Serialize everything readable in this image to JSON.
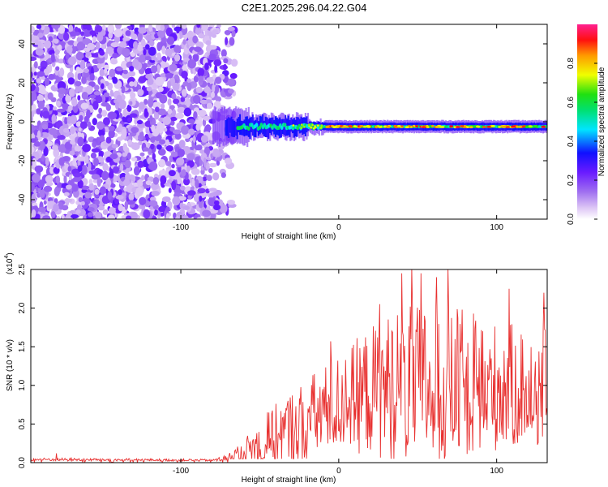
{
  "title": "C2E1.2025.296.04.22.G04",
  "chart_data": [
    {
      "type": "heatmap",
      "title": "C2E1.2025.296.04.22.G04",
      "xlabel": "Height of straight line (km)",
      "ylabel": "Frequency (Hz)",
      "xlim": [
        -195,
        132
      ],
      "ylim": [
        -50,
        50
      ],
      "x_ticks": [
        -100,
        0,
        100
      ],
      "y_ticks": [
        -40,
        -20,
        0,
        20,
        40
      ],
      "colorbar": {
        "label": "Normalized spectral amplitude",
        "range": [
          0,
          1
        ],
        "ticks": [
          "0.0",
          "0.2",
          "0.4",
          "0.6",
          "0.8"
        ],
        "tick_values": [
          0.0,
          0.2,
          0.4,
          0.6,
          0.8
        ]
      },
      "description_data": {
        "noise_region_x": [
          -195,
          -72
        ],
        "signal_band_center_hz": -2.5,
        "signal_onset_x": -72,
        "peak_region_x": [
          -10,
          132
        ]
      }
    },
    {
      "type": "line",
      "xlabel": "Height of straight line (km)",
      "ylabel": "SNR (10 * v/v)",
      "y_scale_label": "(x10",
      "y_scale_exp": "4",
      "y_scale_close": ")",
      "xlim": [
        -195,
        132
      ],
      "ylim": [
        0,
        2.5
      ],
      "x_ticks": [
        -100,
        0,
        100
      ],
      "y_ticks": [
        "0.0",
        "0.5",
        "1.0",
        "1.5",
        "2.0",
        "2.5"
      ],
      "y_tick_values": [
        0.0,
        0.5,
        1.0,
        1.5,
        2.0,
        2.5
      ],
      "series": [
        {
          "name": "SNR",
          "color": "#e8302f",
          "envelope": [
            {
              "x": -195,
              "base": 0.04,
              "amp": 0.03
            },
            {
              "x": -80,
              "base": 0.03,
              "amp": 0.02
            },
            {
              "x": -70,
              "base": 0.05,
              "amp": 0.08
            },
            {
              "x": -55,
              "base": 0.15,
              "amp": 0.35
            },
            {
              "x": -40,
              "base": 0.3,
              "amp": 0.6
            },
            {
              "x": -20,
              "base": 0.5,
              "amp": 0.8
            },
            {
              "x": 0,
              "base": 0.7,
              "amp": 0.9
            },
            {
              "x": 20,
              "base": 0.85,
              "amp": 1.2
            },
            {
              "x": 40,
              "base": 0.9,
              "amp": 1.5
            },
            {
              "x": 70,
              "base": 0.9,
              "amp": 1.5
            },
            {
              "x": 100,
              "base": 0.9,
              "amp": 1.2
            },
            {
              "x": 132,
              "base": 0.9,
              "amp": 1.1
            }
          ],
          "peaks": [
            {
              "x": -179,
              "y": 0.12
            },
            {
              "x": -45,
              "y": 0.65
            },
            {
              "x": -5,
              "y": 1.57
            },
            {
              "x": 26,
              "y": 2.05
            },
            {
              "x": 40,
              "y": 2.45
            },
            {
              "x": 46,
              "y": 2.52
            },
            {
              "x": 52,
              "y": 2.45
            },
            {
              "x": 62,
              "y": 2.4
            },
            {
              "x": 69,
              "y": 2.52
            },
            {
              "x": 108,
              "y": 2.25
            },
            {
              "x": 130,
              "y": 2.2
            }
          ]
        }
      ]
    }
  ]
}
